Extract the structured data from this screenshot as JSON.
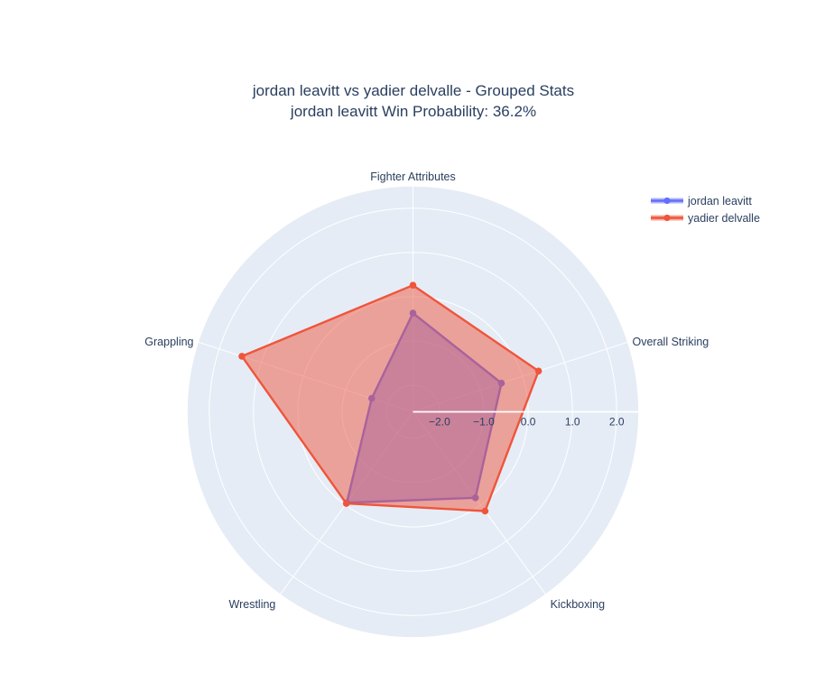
{
  "title": {
    "line1": "jordan leavitt vs yadier delvalle - Grouped Stats",
    "line2": "jordan leavitt Win Probability: 36.2%",
    "win_probability": "36.2%"
  },
  "colors": {
    "paper_background": "#ffffff",
    "polar_background": "#E5ECF6",
    "grid_line": "#ffffff",
    "text": "#2a3f5f",
    "series_blue": "#636EFA",
    "series_red": "#EF553B"
  },
  "legend": {
    "position": "top-right",
    "items": [
      "jordan leavitt",
      "yadier delvalle"
    ]
  },
  "chart_data": {
    "type": "radar",
    "title": "jordan leavitt vs yadier delvalle - Grouped Stats | jordan leavitt Win Probability: 36.2%",
    "categories": [
      "Fighter Attributes",
      "Overall Striking",
      "Kickboxing",
      "Wrestling",
      "Grappling"
    ],
    "series": [
      {
        "name": "jordan leavitt",
        "color": "#636EFA",
        "values": [
          -0.37,
          -0.5,
          -0.2,
          -0.06,
          -1.62
        ]
      },
      {
        "name": "yadier delvalle",
        "color": "#EF553B",
        "values": [
          0.26,
          0.38,
          0.17,
          -0.04,
          1.46
        ]
      }
    ],
    "radial_axis": {
      "range": [
        -2.6,
        2.5
      ],
      "ticks": [
        -2.0,
        -1.0,
        0.0,
        1.0,
        2.0
      ],
      "tick_labels": [
        "−2.0",
        "−1.0",
        "0.0",
        "1.0",
        "2.0"
      ]
    },
    "angular_axis": {
      "rotation_deg": 90,
      "direction": "clockwise"
    },
    "fill": "toself",
    "fill_opacity": 0.5,
    "grid": true,
    "legend_position": "top-right"
  }
}
